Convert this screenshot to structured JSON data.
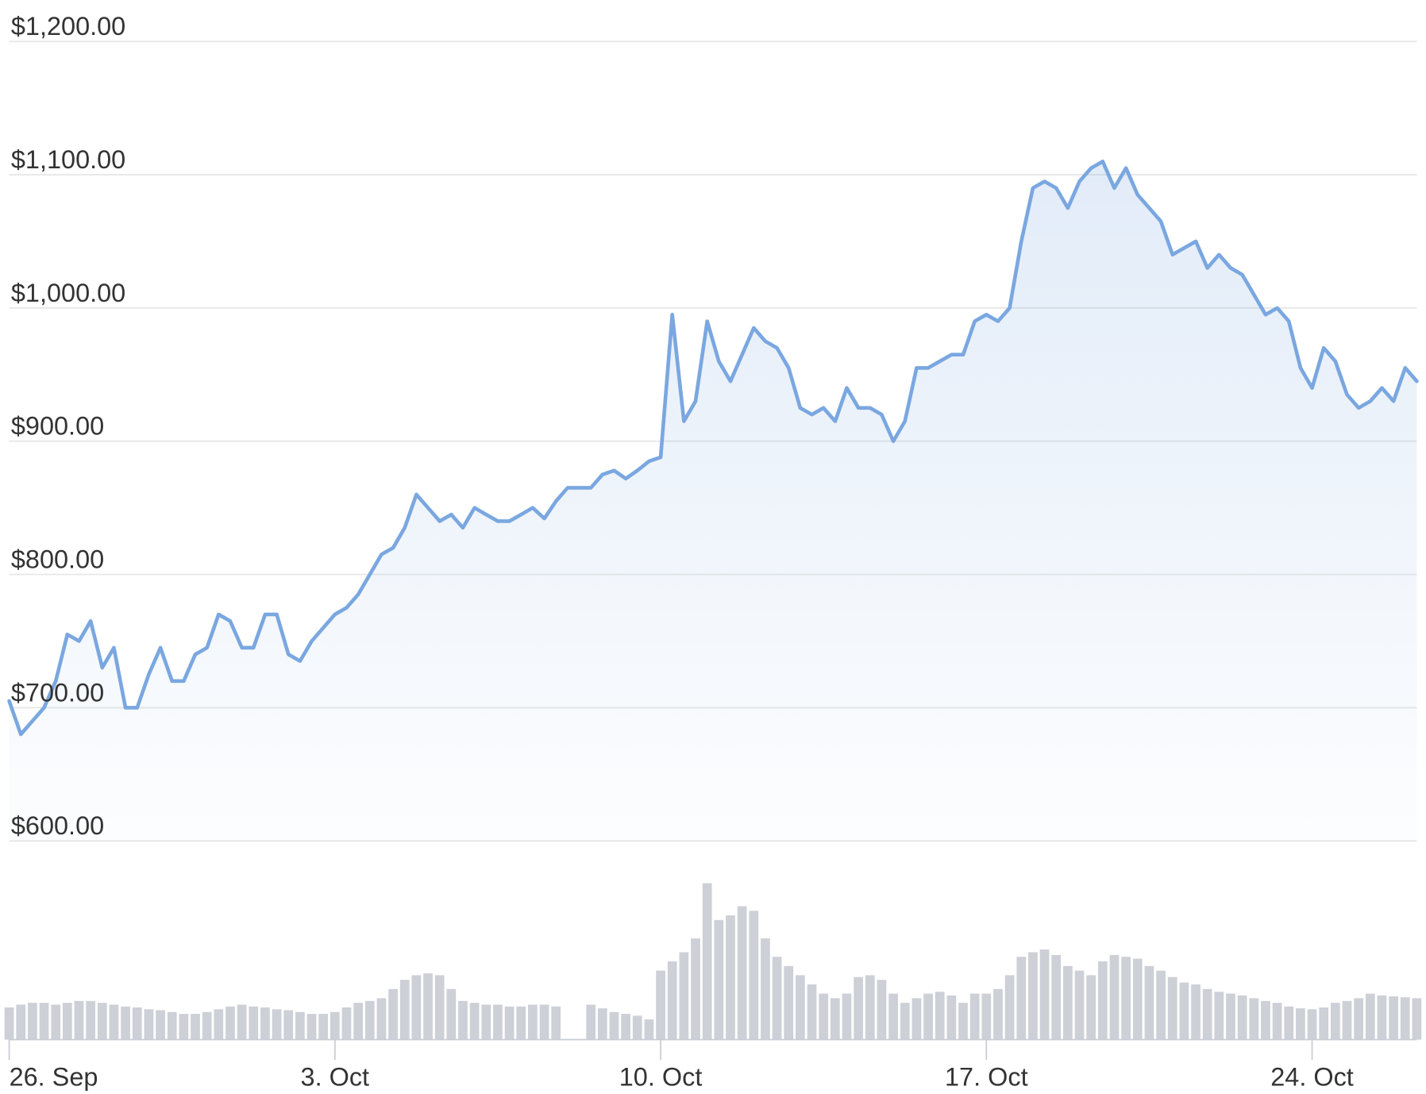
{
  "chart_data": {
    "type": "line",
    "categories": [
      "26. Sep",
      null,
      null,
      null,
      null,
      null,
      null,
      null,
      null,
      null,
      null,
      null,
      null,
      null,
      null,
      null,
      null,
      null,
      null,
      null,
      null,
      null,
      null,
      null,
      null,
      null,
      null,
      null,
      "3. Oct",
      null,
      null,
      null,
      null,
      null,
      null,
      null,
      null,
      null,
      null,
      null,
      null,
      null,
      null,
      null,
      null,
      null,
      null,
      null,
      null,
      null,
      null,
      null,
      null,
      null,
      null,
      null,
      "10. Oct",
      null,
      null,
      null,
      null,
      null,
      null,
      null,
      null,
      null,
      null,
      null,
      null,
      null,
      null,
      null,
      null,
      null,
      null,
      null,
      null,
      null,
      null,
      null,
      null,
      null,
      null,
      null,
      "17. Oct",
      null,
      null,
      null,
      null,
      null,
      null,
      null,
      null,
      null,
      null,
      null,
      null,
      null,
      null,
      null,
      null,
      null,
      null,
      null,
      null,
      null,
      null,
      null,
      null,
      null,
      null,
      null,
      "24. Oct",
      null,
      null,
      null,
      null,
      null,
      null,
      null,
      null,
      null
    ],
    "series": [
      {
        "color": "#7aa7e0",
        "values": [
          705,
          680,
          690,
          700,
          720,
          755,
          750,
          765,
          730,
          745,
          700,
          700,
          725,
          745,
          720,
          720,
          740,
          745,
          770,
          765,
          745,
          745,
          770,
          770,
          740,
          735,
          750,
          760,
          770,
          775,
          785,
          800,
          815,
          820,
          835,
          860,
          850,
          840,
          845,
          835,
          850,
          845,
          840,
          840,
          845,
          850,
          842,
          855,
          865,
          865,
          865,
          875,
          878,
          872,
          878,
          885,
          888,
          995,
          915,
          930,
          990,
          960,
          945,
          965,
          985,
          975,
          970,
          955,
          925,
          920,
          925,
          915,
          940,
          925,
          925,
          920,
          900,
          915,
          955,
          955,
          960,
          965,
          965,
          990,
          995,
          990,
          1000,
          1050,
          1090,
          1095,
          1090,
          1075,
          1095,
          1105,
          1110,
          1090,
          1105,
          1085,
          1075,
          1065,
          1040,
          1045,
          1050,
          1030,
          1040,
          1030,
          1025,
          1010,
          995,
          1000,
          990,
          955,
          940,
          970,
          960,
          935,
          925,
          930,
          940,
          930,
          955,
          945
        ]
      },
      {
        "color": "#cdd0d6",
        "axis": "y2",
        "values": [
          35,
          38,
          40,
          40,
          38,
          40,
          42,
          42,
          40,
          38,
          36,
          35,
          33,
          32,
          30,
          28,
          28,
          30,
          33,
          36,
          38,
          36,
          35,
          33,
          32,
          30,
          28,
          28,
          30,
          35,
          40,
          42,
          45,
          55,
          65,
          70,
          72,
          70,
          55,
          42,
          40,
          38,
          38,
          36,
          36,
          38,
          38,
          36,
          null,
          null,
          38,
          34,
          30,
          28,
          26,
          22,
          75,
          85,
          95,
          110,
          170,
          130,
          135,
          145,
          140,
          110,
          90,
          80,
          70,
          60,
          50,
          45,
          50,
          68,
          70,
          65,
          50,
          40,
          45,
          50,
          52,
          48,
          40,
          50,
          50,
          55,
          70,
          90,
          95,
          98,
          92,
          80,
          75,
          70,
          85,
          92,
          90,
          88,
          80,
          75,
          68,
          62,
          60,
          55,
          52,
          50,
          48,
          45,
          42,
          40,
          36,
          34,
          33,
          35,
          40,
          42,
          45,
          50,
          48,
          47,
          46,
          45
        ]
      }
    ],
    "ylim": [
      600,
      1200
    ],
    "yticks": [
      {
        "value": 600,
        "label": "$600.00"
      },
      {
        "value": 700,
        "label": "$700.00"
      },
      {
        "value": 800,
        "label": "$800.00"
      },
      {
        "value": 900,
        "label": "$900.00"
      },
      {
        "value": 1000,
        "label": "$1,000.00"
      },
      {
        "value": 1100,
        "label": "$1,100.00"
      },
      {
        "value": 1200,
        "label": "$1,200.00"
      }
    ],
    "y2lim": [
      0,
      190
    ],
    "grid": true
  }
}
